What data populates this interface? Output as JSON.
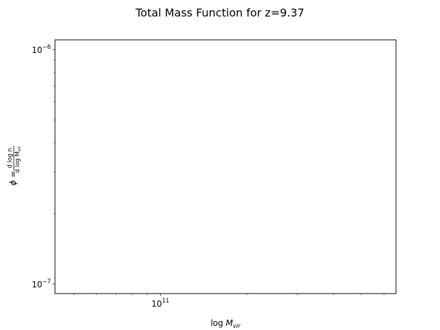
{
  "chart_data": {
    "type": "line",
    "title": "Total Mass Function for z=9.37",
    "xlabel": {
      "prefix": "log ",
      "symbol": "M",
      "subscript": "vir"
    },
    "ylabel": {
      "symbol": "ϕ",
      "equals": " = ",
      "numerator": "d log n",
      "denominator": "d log M",
      "denominator_subscript": "vir"
    },
    "xscale": "log",
    "yscale": "log",
    "xlim": [
      43000000000,
      660000000000
    ],
    "ylim": [
      9.1e-08,
      1.1e-06
    ],
    "x_major_ticks": [
      {
        "value": 100000000000,
        "base": "10",
        "exponent": "11"
      }
    ],
    "x_minor_ticks": [
      50000000000,
      60000000000,
      70000000000,
      80000000000,
      90000000000,
      200000000000,
      300000000000,
      400000000000,
      500000000000,
      600000000000
    ],
    "y_major_ticks": [
      {
        "value": 1e-07,
        "base": "10",
        "exponent": "−7"
      },
      {
        "value": 1e-06,
        "base": "10",
        "exponent": "−6"
      }
    ],
    "y_minor_ticks": [
      2e-07,
      3e-07,
      4e-07,
      5e-07,
      6e-07,
      7e-07,
      8e-07,
      9e-07
    ],
    "series": [],
    "grid": false,
    "legend": "none"
  },
  "colors": {
    "axes": "#000000",
    "background": "#ffffff"
  }
}
